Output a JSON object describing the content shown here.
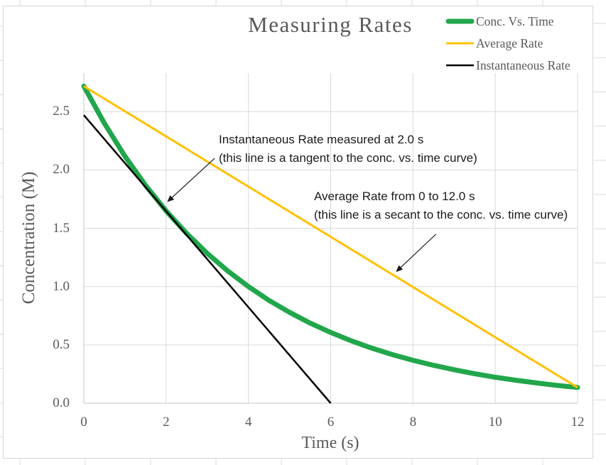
{
  "chart_data": {
    "type": "line",
    "title": "Measuring Rates",
    "xlabel": "Time (s)",
    "ylabel": "Concentration (M)",
    "xlim": [
      0,
      12
    ],
    "ylim": [
      0,
      2.83
    ],
    "grid": true,
    "grid_color": "#d9d9d9",
    "axis_color": "#c6c6c6",
    "text_color": "#595959",
    "legend_position": "top-right",
    "x_ticks": [
      0,
      2,
      4,
      6,
      8,
      10,
      12
    ],
    "x_tick_labels": [
      "0",
      "2",
      "4",
      "6",
      "8",
      "10",
      "12"
    ],
    "y_ticks": [
      0,
      0.5,
      1.0,
      1.5,
      2.0,
      2.5
    ],
    "y_tick_labels": [
      "0.0",
      "0.5",
      "1.0",
      "1.5",
      "2.0",
      "2.5"
    ],
    "series": [
      {
        "name": "Conc. Vs. Time",
        "color": "#21a64c",
        "stroke_width": 7,
        "points": [
          [
            0,
            2.718
          ],
          [
            0.5,
            2.399
          ],
          [
            1,
            2.117
          ],
          [
            1.5,
            1.868
          ],
          [
            2,
            1.649
          ],
          [
            2.5,
            1.455
          ],
          [
            3,
            1.284
          ],
          [
            3.5,
            1.133
          ],
          [
            4,
            1.0
          ],
          [
            4.5,
            0.882
          ],
          [
            5,
            0.779
          ],
          [
            5.5,
            0.687
          ],
          [
            6,
            0.607
          ],
          [
            6.5,
            0.535
          ],
          [
            7,
            0.472
          ],
          [
            7.5,
            0.417
          ],
          [
            8,
            0.368
          ],
          [
            8.5,
            0.325
          ],
          [
            9,
            0.287
          ],
          [
            9.5,
            0.253
          ],
          [
            10,
            0.223
          ],
          [
            10.5,
            0.197
          ],
          [
            11,
            0.174
          ],
          [
            11.5,
            0.153
          ],
          [
            12,
            0.135
          ]
        ]
      },
      {
        "name": "Average Rate",
        "color": "#ffc000",
        "stroke_width": 3,
        "points": [
          [
            0,
            2.718
          ],
          [
            12,
            0.135
          ]
        ]
      },
      {
        "name": "Instantaneous Rate",
        "color": "#000000",
        "stroke_width": 2.5,
        "points": [
          [
            0,
            2.47
          ],
          [
            6,
            0
          ]
        ]
      }
    ],
    "annotations": [
      {
        "lines": [
          "Instantaneous Rate measured at 2.0 s",
          "(this line is a tangent to the conc. vs. time curve)"
        ],
        "arrow": {
          "from_t": 3.18,
          "from_c": 2.1,
          "to_t": 2.04,
          "to_c": 1.73
        }
      },
      {
        "lines": [
          "Average Rate from 0 to 12.0 s",
          "(this line is a secant to the conc. vs. time curve)"
        ],
        "arrow": {
          "from_t": 8.56,
          "from_c": 1.45,
          "to_t": 7.6,
          "to_c": 1.13
        }
      }
    ]
  }
}
